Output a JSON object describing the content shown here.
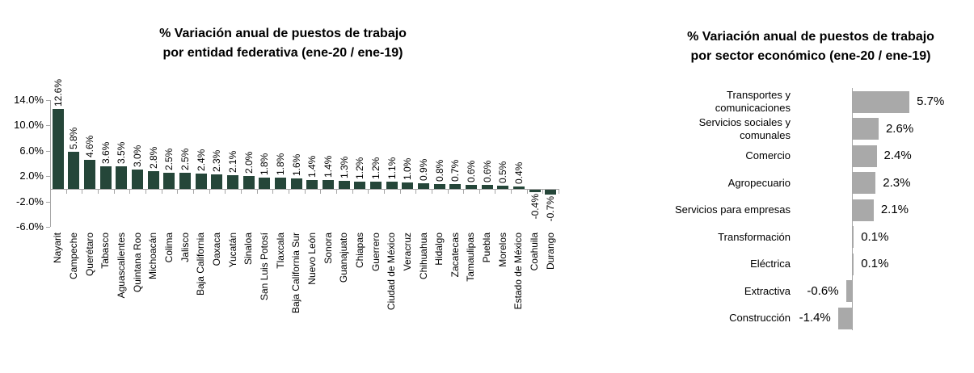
{
  "page": {
    "background": "#ffffff"
  },
  "chart_data": [
    {
      "type": "bar",
      "orientation": "vertical",
      "title": "% Variación anual de puestos de trabajo",
      "subtitle": "por entidad federativa (ene-20 / ene-19)",
      "categories": [
        "Nayarit",
        "Campeche",
        "Querétaro",
        "Tabasco",
        "Aguascalientes",
        "Quintana Roo",
        "Michoacán",
        "Colima",
        "Jalisco",
        "Baja California",
        "Oaxaca",
        "Yucatán",
        "Sinaloa",
        "San Luis Potosí",
        "Tlaxcala",
        "Baja California Sur",
        "Nuevo León",
        "Sonora",
        "Guanajuato",
        "Chiapas",
        "Guerrero",
        "Ciudad de México",
        "Veracruz",
        "Chihuahua",
        "Hidalgo",
        "Zacatecas",
        "Tamaulipas",
        "Puebla",
        "Morelos",
        "Estado de México",
        "Coahuila",
        "Durango"
      ],
      "values": [
        12.6,
        5.8,
        4.6,
        3.6,
        3.5,
        3.0,
        2.8,
        2.5,
        2.5,
        2.4,
        2.3,
        2.1,
        2.0,
        1.8,
        1.8,
        1.6,
        1.4,
        1.4,
        1.3,
        1.2,
        1.2,
        1.1,
        1.0,
        0.9,
        0.8,
        0.7,
        0.6,
        0.6,
        0.5,
        0.4,
        -0.4,
        -0.7
      ],
      "value_labels": [
        "12.6%",
        "5.8%",
        "4.6%",
        "3.6%",
        "3.5%",
        "3.0%",
        "2.8%",
        "2.5%",
        "2.5%",
        "2.4%",
        "2.3%",
        "2.1%",
        "2.0%",
        "1.8%",
        "1.8%",
        "1.6%",
        "1.4%",
        "1.4%",
        "1.3%",
        "1.2%",
        "1.2%",
        "1.1%",
        "1.0%",
        "0.9%",
        "0.8%",
        "0.7%",
        "0.6%",
        "0.6%",
        "0.5%",
        "0.4%",
        "-0.4%",
        "-0.7%"
      ],
      "y_axis": {
        "tick_labels": [
          "14.0%",
          "10.0%",
          "6.0%",
          "2.0%",
          "-2.0%",
          "-6.0%"
        ],
        "tick_values": [
          14,
          10,
          6,
          2,
          -2,
          -6
        ],
        "min": -6,
        "max": 14
      },
      "grid": false,
      "legend": "none",
      "bar_color": "#254639",
      "axis_color": "#a6a6a6",
      "text_color": "#000000",
      "value_label_rotation": -90,
      "category_label_rotation": -90
    },
    {
      "type": "bar",
      "orientation": "horizontal",
      "title": "% Variación anual de puestos de trabajo",
      "subtitle": "por sector económico (ene-20 / ene-19)",
      "categories": [
        "Transportes y comunicaciones",
        "Servicios sociales y comunales",
        "Comercio",
        "Agropecuario",
        "Servicios para empresas",
        "Transformación",
        "Eléctrica",
        "Extractiva",
        "Construcción"
      ],
      "values": [
        5.7,
        2.6,
        2.4,
        2.3,
        2.1,
        0.1,
        0.1,
        -0.6,
        -1.4
      ],
      "value_labels": [
        "5.7%",
        "2.6%",
        "2.4%",
        "2.3%",
        "2.1%",
        "0.1%",
        "0.1%",
        "-0.6%",
        "-1.4%"
      ],
      "grid": false,
      "legend": "none",
      "bar_color": "#a9a9a9",
      "axis_color": "#a6a6a6",
      "text_color": "#000000"
    }
  ]
}
